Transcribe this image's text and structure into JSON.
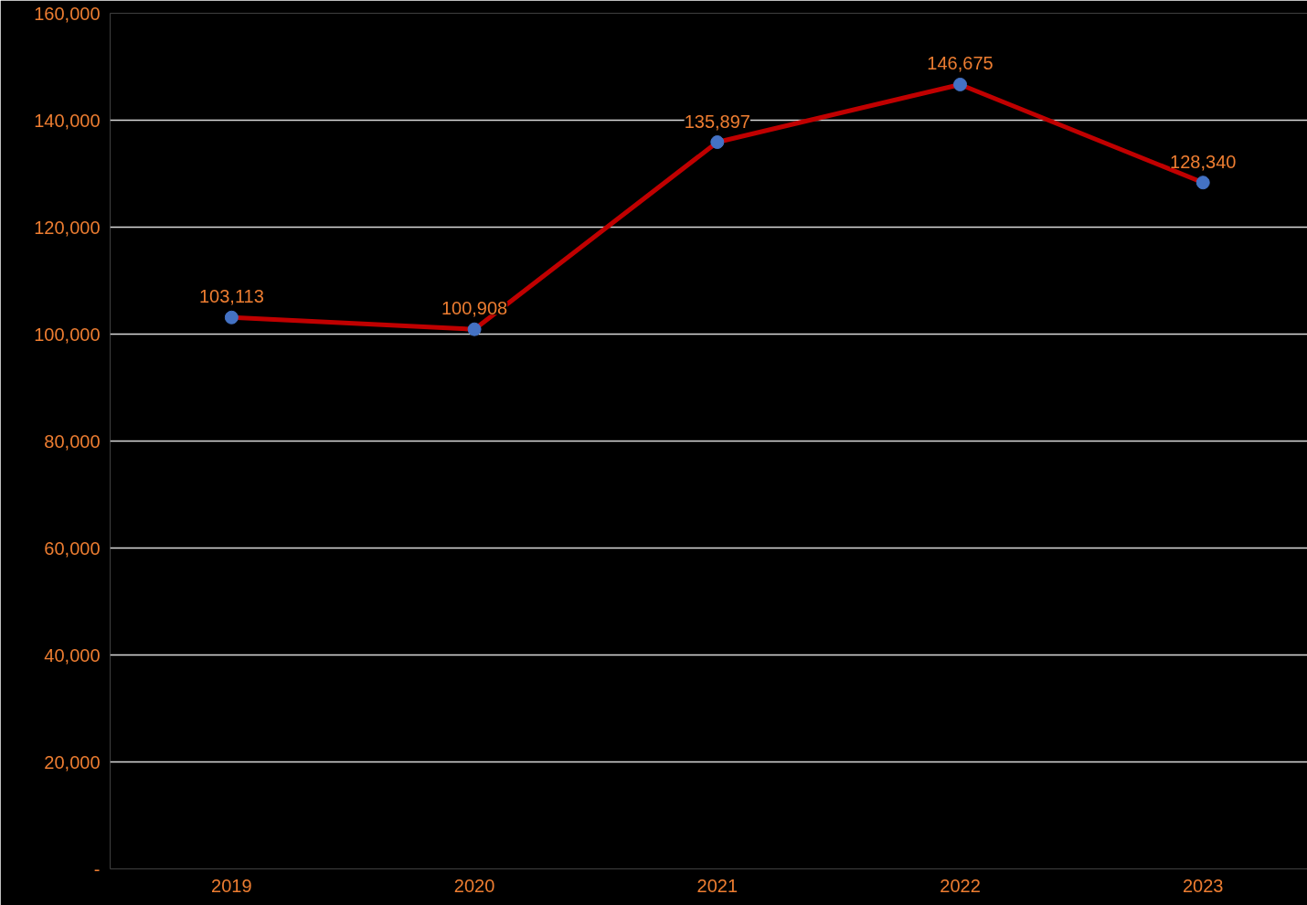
{
  "chart_data": {
    "type": "line",
    "categories": [
      "2019",
      "2020",
      "2021",
      "2022",
      "2023"
    ],
    "series": [
      {
        "color": "#c00000",
        "colors": [
          "#4472c4",
          "#4472c4",
          "#4472c4",
          "#4472c4",
          "#4472c4"
        ],
        "values": [
          103113,
          100908,
          135897,
          146675,
          128340
        ],
        "value_labels": [
          "103,113",
          "100,908",
          "135,897",
          "146,675",
          "128,340"
        ]
      }
    ],
    "ylim": [
      0,
      160000
    ],
    "yticks": [
      {
        "value": 0,
        "label": "-"
      },
      {
        "value": 20000,
        "label": "20,000"
      },
      {
        "value": 40000,
        "label": "40,000"
      },
      {
        "value": 60000,
        "label": "60,000"
      },
      {
        "value": 80000,
        "label": "80,000"
      },
      {
        "value": 100000,
        "label": "100,000"
      },
      {
        "value": 120000,
        "label": "120,000"
      },
      {
        "value": 140000,
        "label": "140,000"
      },
      {
        "value": 160000,
        "label": "160,000"
      }
    ],
    "grid": "y",
    "marker": "circle",
    "line_style": "solid"
  }
}
